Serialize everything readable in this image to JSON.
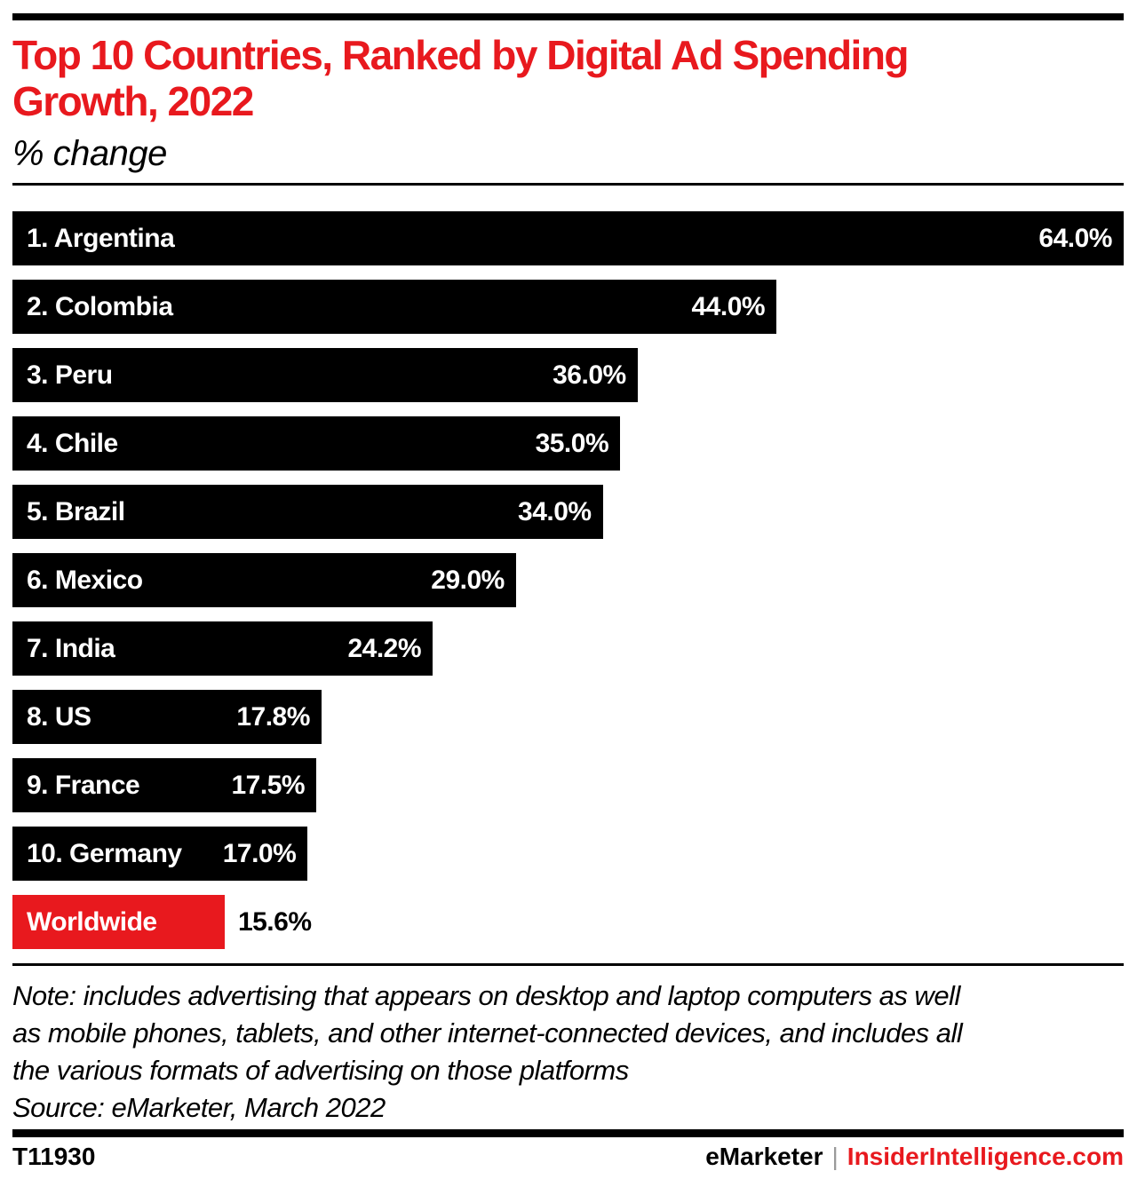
{
  "header": {
    "title_lines": [
      "Top 10 Countries, Ranked by Digital Ad Spending",
      "Growth, 2022"
    ],
    "subtitle": "% change"
  },
  "chart_data": {
    "type": "bar",
    "orientation": "horizontal",
    "title": "Top 10 Countries, Ranked by Digital Ad Spending Growth, 2022",
    "unit_label": "% change",
    "xlim": [
      0,
      64
    ],
    "grid": false,
    "legend": "none",
    "bar_color": "#000000",
    "highlight_color": "#e8191e",
    "categories": [
      "1. Argentina",
      "2. Colombia",
      "3. Peru",
      "4. Chile",
      "5. Brazil",
      "6. Mexico",
      "7. India",
      "8. US",
      "9. France",
      "10. Germany",
      "Worldwide"
    ],
    "values": [
      64.0,
      44.0,
      36.0,
      35.0,
      34.0,
      29.0,
      24.2,
      17.8,
      17.5,
      17.0,
      15.6
    ],
    "bars": [
      {
        "label": "1. Argentina",
        "value": 64.0,
        "display": "64.0%"
      },
      {
        "label": "2. Colombia",
        "value": 44.0,
        "display": "44.0%"
      },
      {
        "label": "3. Peru",
        "value": 36.0,
        "display": "36.0%"
      },
      {
        "label": "4. Chile",
        "value": 35.0,
        "display": "35.0%"
      },
      {
        "label": "5. Brazil",
        "value": 34.0,
        "display": "34.0%"
      },
      {
        "label": "6. Mexico",
        "value": 29.0,
        "display": "29.0%"
      },
      {
        "label": "7. India",
        "value": 24.2,
        "display": "24.2%"
      },
      {
        "label": "8. US",
        "value": 17.8,
        "display": "17.8%"
      },
      {
        "label": "9. France",
        "value": 17.5,
        "display": "17.5%"
      },
      {
        "label": "10. Germany",
        "value": 17.0,
        "display": "17.0%"
      },
      {
        "label": "Worldwide",
        "value": 15.6,
        "display": "15.6%",
        "color": "#e8191e",
        "width_pct": 19.1,
        "value_outside": true
      }
    ]
  },
  "note": {
    "lines": [
      "Note: includes advertising that appears on desktop and laptop computers as well",
      "as mobile phones, tablets, and other internet-connected devices, and includes all",
      "the various formats of advertising on those platforms"
    ],
    "source": "Source: eMarketer, March 2022"
  },
  "footer": {
    "chart_id": "T11930",
    "brand": "eMarketer",
    "separator": "|",
    "site": "InsiderIntelligence.com"
  },
  "colors": {
    "accent_red": "#e8191e",
    "bar_black": "#000000",
    "separator_gray": "#9a9a9a"
  }
}
